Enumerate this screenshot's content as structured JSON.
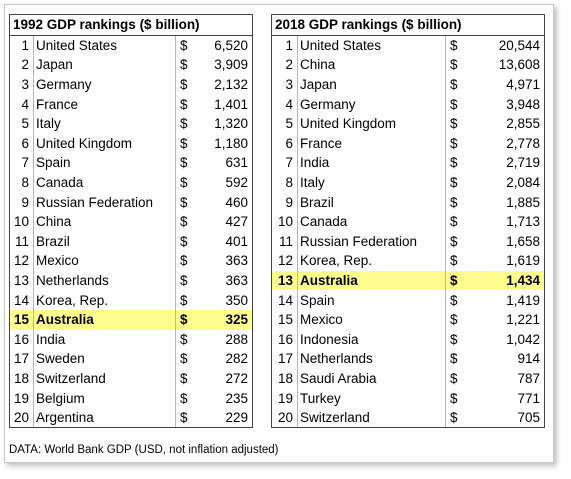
{
  "left_table": {
    "title": "1992 GDP rankings ($ billion)",
    "rows": [
      {
        "rank": "1",
        "country": "United States",
        "currency": "$",
        "value": "6,520"
      },
      {
        "rank": "2",
        "country": "Japan",
        "currency": "$",
        "value": "3,909"
      },
      {
        "rank": "3",
        "country": "Germany",
        "currency": "$",
        "value": "2,132"
      },
      {
        "rank": "4",
        "country": "France",
        "currency": "$",
        "value": "1,401"
      },
      {
        "rank": "5",
        "country": "Italy",
        "currency": "$",
        "value": "1,320"
      },
      {
        "rank": "6",
        "country": "United Kingdom",
        "currency": "$",
        "value": "1,180"
      },
      {
        "rank": "7",
        "country": "Spain",
        "currency": "$",
        "value": "631"
      },
      {
        "rank": "8",
        "country": "Canada",
        "currency": "$",
        "value": "592"
      },
      {
        "rank": "9",
        "country": "Russian Federation",
        "currency": "$",
        "value": "460"
      },
      {
        "rank": "10",
        "country": "China",
        "currency": "$",
        "value": "427"
      },
      {
        "rank": "11",
        "country": "Brazil",
        "currency": "$",
        "value": "401"
      },
      {
        "rank": "12",
        "country": "Mexico",
        "currency": "$",
        "value": "363"
      },
      {
        "rank": "13",
        "country": "Netherlands",
        "currency": "$",
        "value": "363"
      },
      {
        "rank": "14",
        "country": "Korea, Rep.",
        "currency": "$",
        "value": "350"
      },
      {
        "rank": "15",
        "country": "Australia",
        "currency": "$",
        "value": "325",
        "highlight": true
      },
      {
        "rank": "16",
        "country": "India",
        "currency": "$",
        "value": "288"
      },
      {
        "rank": "17",
        "country": "Sweden",
        "currency": "$",
        "value": "282"
      },
      {
        "rank": "18",
        "country": "Switzerland",
        "currency": "$",
        "value": "272"
      },
      {
        "rank": "19",
        "country": "Belgium",
        "currency": "$",
        "value": "235"
      },
      {
        "rank": "20",
        "country": "Argentina",
        "currency": "$",
        "value": "229"
      }
    ]
  },
  "right_table": {
    "title": "2018 GDP rankings ($ billion)",
    "rows": [
      {
        "rank": "1",
        "country": "United States",
        "currency": "$",
        "value": "20,544"
      },
      {
        "rank": "2",
        "country": "China",
        "currency": "$",
        "value": "13,608"
      },
      {
        "rank": "3",
        "country": "Japan",
        "currency": "$",
        "value": "4,971"
      },
      {
        "rank": "4",
        "country": "Germany",
        "currency": "$",
        "value": "3,948"
      },
      {
        "rank": "5",
        "country": "United Kingdom",
        "currency": "$",
        "value": "2,855"
      },
      {
        "rank": "6",
        "country": "France",
        "currency": "$",
        "value": "2,778"
      },
      {
        "rank": "7",
        "country": "India",
        "currency": "$",
        "value": "2,719"
      },
      {
        "rank": "8",
        "country": "Italy",
        "currency": "$",
        "value": "2,084"
      },
      {
        "rank": "9",
        "country": "Brazil",
        "currency": "$",
        "value": "1,885"
      },
      {
        "rank": "10",
        "country": "Canada",
        "currency": "$",
        "value": "1,713"
      },
      {
        "rank": "11",
        "country": "Russian Federation",
        "currency": "$",
        "value": "1,658"
      },
      {
        "rank": "12",
        "country": "Korea, Rep.",
        "currency": "$",
        "value": "1,619"
      },
      {
        "rank": "13",
        "country": "Australia",
        "currency": "$",
        "value": "1,434",
        "highlight": true
      },
      {
        "rank": "14",
        "country": "Spain",
        "currency": "$",
        "value": "1,419"
      },
      {
        "rank": "15",
        "country": "Mexico",
        "currency": "$",
        "value": "1,221"
      },
      {
        "rank": "16",
        "country": "Indonesia",
        "currency": "$",
        "value": "1,042"
      },
      {
        "rank": "17",
        "country": "Netherlands",
        "currency": "$",
        "value": "914"
      },
      {
        "rank": "18",
        "country": "Saudi Arabia",
        "currency": "$",
        "value": "787"
      },
      {
        "rank": "19",
        "country": "Turkey",
        "currency": "$",
        "value": "771"
      },
      {
        "rank": "20",
        "country": "Switzerland",
        "currency": "$",
        "value": "705"
      }
    ]
  },
  "highlight_color": "#fdfd8e",
  "source_note": "DATA: World Bank GDP (USD, not inflation adjusted)"
}
